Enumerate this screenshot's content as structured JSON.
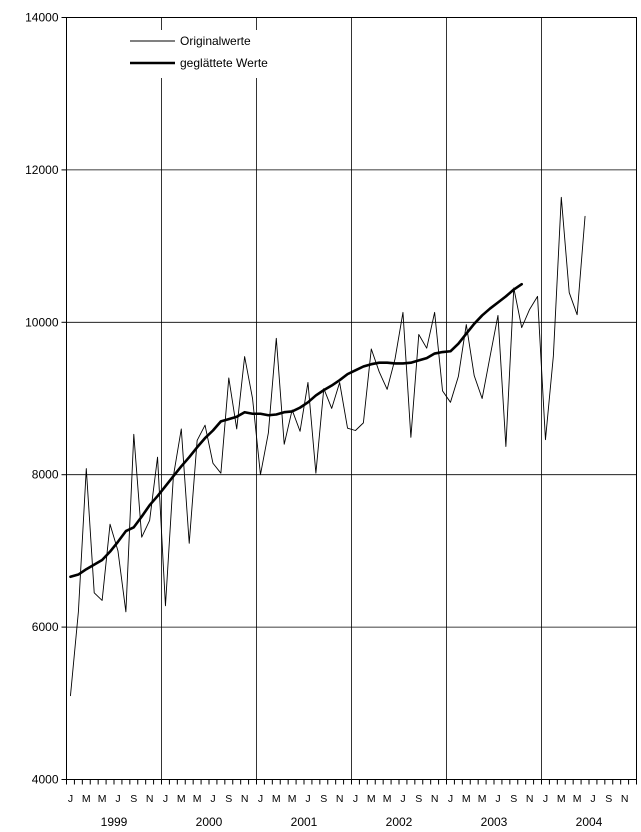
{
  "chart_data": {
    "type": "line",
    "title": "",
    "xlabel": "",
    "ylabel": "",
    "ylim": [
      4000,
      14000
    ],
    "y_ticks": [
      "4000",
      "6000",
      "8000",
      "10000",
      "12000",
      "14000"
    ],
    "month_labels": [
      "J",
      "M",
      "M",
      "J",
      "S",
      "N"
    ],
    "years": [
      "1999",
      "2000",
      "2001",
      "2002",
      "2003",
      "2004"
    ],
    "grid": true,
    "legend_position": "top-left",
    "series": [
      {
        "name": "Originalwerte",
        "color": "#000000",
        "values": [
          5100,
          6200,
          8080,
          6450,
          6350,
          7350,
          7000,
          6200,
          8530,
          7180,
          7400,
          8230,
          6280,
          7980,
          8600,
          7100,
          8450,
          8650,
          8150,
          8020,
          9270,
          8600,
          9550,
          9000,
          8000,
          8550,
          9790,
          8400,
          8850,
          8570,
          9210,
          8020,
          9130,
          8870,
          9210,
          8610,
          8580,
          8680,
          9650,
          9350,
          9120,
          9520,
          10130,
          8490,
          9840,
          9660,
          10130,
          9100,
          8950,
          9290,
          9970,
          9300,
          9000,
          9550,
          10090,
          8370,
          10450,
          9930,
          10170,
          10340,
          8460,
          9560,
          11640,
          10390,
          10100,
          11390
        ]
      },
      {
        "name": "geglättete Werte",
        "color": "#000000",
        "values": [
          6660,
          6690,
          6760,
          6820,
          6880,
          6990,
          7120,
          7260,
          7310,
          7450,
          7600,
          7720,
          7850,
          7980,
          8110,
          8230,
          8360,
          8480,
          8580,
          8700,
          8730,
          8760,
          8820,
          8800,
          8800,
          8780,
          8790,
          8820,
          8830,
          8880,
          8950,
          9040,
          9110,
          9170,
          9240,
          9320,
          9370,
          9420,
          9450,
          9470,
          9470,
          9460,
          9460,
          9470,
          9500,
          9530,
          9590,
          9610,
          9620,
          9720,
          9850,
          9980,
          10090,
          10180,
          10260,
          10340,
          10430,
          10500
        ]
      }
    ]
  }
}
